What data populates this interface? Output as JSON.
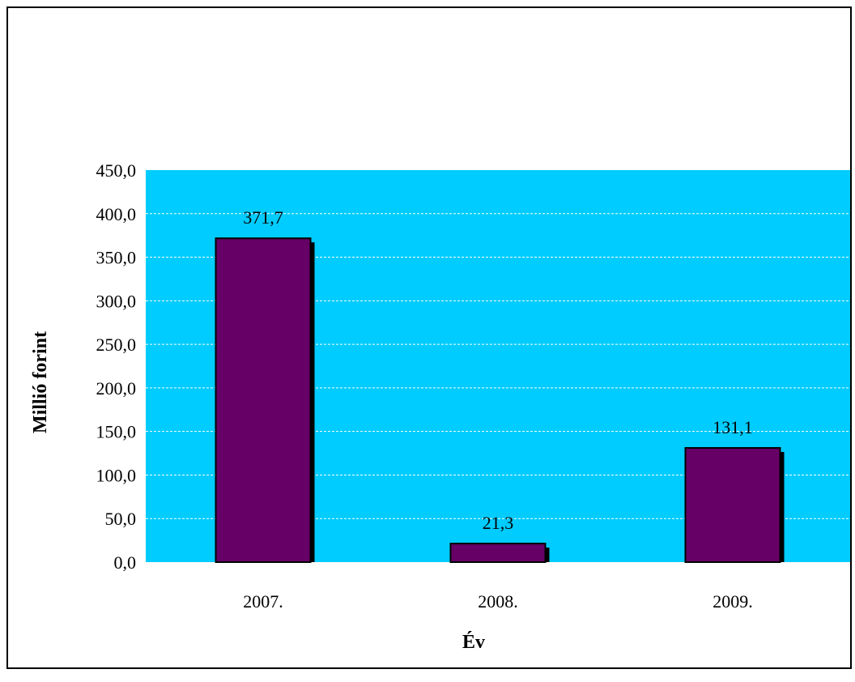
{
  "chart_data": {
    "type": "bar",
    "title": "",
    "xlabel": "Év",
    "ylabel": "Millió forint",
    "categories": [
      "2007.",
      "2008.",
      "2009."
    ],
    "values": [
      371.7,
      21.3,
      131.1
    ],
    "data_labels": [
      "371,7",
      "21,3",
      "131,1"
    ],
    "ylim": [
      0,
      450
    ],
    "yticks": [
      0,
      50,
      100,
      150,
      200,
      250,
      300,
      350,
      400,
      450
    ],
    "ytick_labels": [
      "0,0",
      "50,0",
      "100,0",
      "150,0",
      "200,0",
      "250,0",
      "300,0",
      "350,0",
      "400,0",
      "450,0"
    ],
    "grid": true,
    "legend": "none",
    "colors": {
      "plot_background": "#00ccff",
      "bar_fill": "#660066",
      "bar_shadow": "#000000",
      "gridline": "#ffffff"
    }
  }
}
